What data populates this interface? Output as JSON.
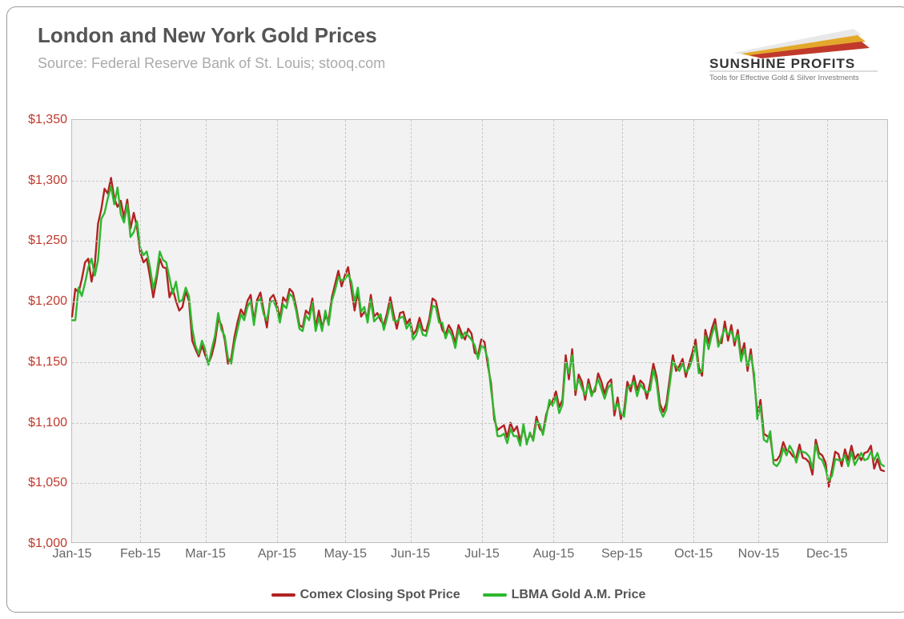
{
  "chart": {
    "title": "London and New York Gold Prices",
    "subtitle": "Source: Federal Reserve Bank of St. Louis; stooq.com",
    "type": "line",
    "background_color": "#f2f2f2",
    "container_bg": "#ffffff",
    "border_color": "#bfbfbf",
    "grid_color": "#c8c8c8",
    "grid_dash": "4,4",
    "xlim": [
      0,
      251
    ],
    "ylim": [
      1000,
      1350
    ],
    "ytick_step": 50,
    "yticks": [
      1000,
      1050,
      1100,
      1150,
      1200,
      1250,
      1300,
      1350
    ],
    "ytick_prefix": "$",
    "ytick_color": "#c0392b",
    "ytick_fontsize": 16,
    "xticks_pos": [
      0,
      21,
      41,
      63,
      84,
      104,
      126,
      148,
      169,
      191,
      211,
      232
    ],
    "xticks_labels": [
      "Jan-15",
      "Feb-15",
      "Mar-15",
      "Apr-15",
      "May-15",
      "Jun-15",
      "Jul-15",
      "Aug-15",
      "Sep-15",
      "Oct-15",
      "Nov-15",
      "Dec-15"
    ],
    "xtick_color": "#666666",
    "xtick_fontsize": 16,
    "title_fontsize": 26,
    "title_color": "#555555",
    "subtitle_fontsize": 18,
    "subtitle_color": "#aaaaaa",
    "line_width": 2.4,
    "series": [
      {
        "name": "Comex Closing Spot Price",
        "color": "#b22222",
        "data": [
          1187,
          1210,
          1207,
          1218,
          1232,
          1235,
          1216,
          1230,
          1264,
          1276,
          1293,
          1289,
          1302,
          1285,
          1278,
          1283,
          1269,
          1284,
          1260,
          1273,
          1261,
          1240,
          1232,
          1235,
          1220,
          1203,
          1218,
          1235,
          1228,
          1227,
          1203,
          1210,
          1200,
          1192,
          1195,
          1208,
          1200,
          1167,
          1160,
          1154,
          1163,
          1155,
          1148,
          1155,
          1166,
          1185,
          1180,
          1168,
          1148,
          1152,
          1170,
          1183,
          1193,
          1188,
          1200,
          1205,
          1183,
          1201,
          1207,
          1192,
          1178,
          1202,
          1205,
          1198,
          1185,
          1203,
          1199,
          1210,
          1207,
          1195,
          1180,
          1178,
          1192,
          1189,
          1202,
          1178,
          1192,
          1178,
          1187,
          1184,
          1203,
          1214,
          1225,
          1212,
          1221,
          1228,
          1210,
          1192,
          1208,
          1187,
          1191,
          1186,
          1205,
          1187,
          1190,
          1184,
          1180,
          1190,
          1203,
          1189,
          1177,
          1190,
          1191,
          1181,
          1185,
          1172,
          1176,
          1186,
          1176,
          1175,
          1185,
          1202,
          1200,
          1187,
          1176,
          1172,
          1180,
          1175,
          1165,
          1180,
          1173,
          1168,
          1177,
          1173,
          1157,
          1155,
          1168,
          1166,
          1147,
          1132,
          1102,
          1093,
          1095,
          1097,
          1087,
          1099,
          1092,
          1096,
          1084,
          1095,
          1083,
          1089,
          1086,
          1104,
          1094,
          1091,
          1106,
          1114,
          1117,
          1125,
          1112,
          1118,
          1155,
          1135,
          1160,
          1122,
          1139,
          1133,
          1118,
          1135,
          1124,
          1125,
          1140,
          1133,
          1123,
          1132,
          1135,
          1105,
          1120,
          1102,
          1109,
          1133,
          1125,
          1138,
          1126,
          1134,
          1131,
          1119,
          1132,
          1148,
          1137,
          1115,
          1108,
          1115,
          1135,
          1155,
          1142,
          1146,
          1152,
          1137,
          1148,
          1157,
          1168,
          1145,
          1138,
          1176,
          1165,
          1177,
          1185,
          1166,
          1165,
          1183,
          1167,
          1180,
          1163,
          1176,
          1155,
          1165,
          1142,
          1160,
          1136,
          1107,
          1118,
          1090,
          1088,
          1087,
          1068,
          1068,
          1072,
          1083,
          1076,
          1075,
          1071,
          1070,
          1081,
          1070,
          1069,
          1066,
          1056,
          1085,
          1074,
          1072,
          1066,
          1046,
          1060,
          1075,
          1073,
          1063,
          1077,
          1068,
          1080,
          1069,
          1073,
          1068,
          1074,
          1075,
          1080,
          1061,
          1069,
          1060,
          1059
        ]
      },
      {
        "name": "LBMA Gold A.M. Price",
        "color": "#2eb82e",
        "data": [
          1184,
          1184,
          1211,
          1204,
          1215,
          1228,
          1235,
          1221,
          1234,
          1268,
          1273,
          1285,
          1295,
          1280,
          1294,
          1272,
          1265,
          1280,
          1253,
          1257,
          1266,
          1244,
          1238,
          1241,
          1228,
          1210,
          1222,
          1241,
          1234,
          1232,
          1219,
          1206,
          1216,
          1199,
          1201,
          1211,
          1204,
          1177,
          1163,
          1156,
          1167,
          1160,
          1147,
          1160,
          1171,
          1190,
          1176,
          1171,
          1153,
          1148,
          1165,
          1177,
          1189,
          1184,
          1195,
          1200,
          1180,
          1199,
          1202,
          1189,
          1184,
          1199,
          1200,
          1194,
          1182,
          1197,
          1194,
          1206,
          1203,
          1192,
          1177,
          1175,
          1188,
          1184,
          1198,
          1175,
          1186,
          1175,
          1192,
          1180,
          1200,
          1209,
          1220,
          1217,
          1218,
          1222,
          1216,
          1199,
          1211,
          1191,
          1195,
          1182,
          1201,
          1183,
          1186,
          1189,
          1176,
          1186,
          1198,
          1184,
          1183,
          1186,
          1187,
          1177,
          1182,
          1168,
          1172,
          1181,
          1172,
          1171,
          1181,
          1196,
          1195,
          1182,
          1182,
          1169,
          1176,
          1171,
          1161,
          1176,
          1169,
          1174,
          1171,
          1168,
          1163,
          1152,
          1163,
          1161,
          1152,
          1127,
          1106,
          1088,
          1088,
          1090,
          1082,
          1094,
          1088,
          1088,
          1080,
          1098,
          1081,
          1091,
          1084,
          1100,
          1098,
          1089,
          1103,
          1118,
          1113,
          1121,
          1107,
          1114,
          1149,
          1140,
          1155,
          1126,
          1135,
          1128,
          1122,
          1131,
          1121,
          1128,
          1135,
          1127,
          1119,
          1128,
          1131,
          1110,
          1115,
          1107,
          1104,
          1128,
          1130,
          1133,
          1121,
          1131,
          1127,
          1124,
          1126,
          1143,
          1132,
          1110,
          1104,
          1110,
          1130,
          1150,
          1146,
          1142,
          1148,
          1141,
          1144,
          1152,
          1163,
          1140,
          1142,
          1171,
          1160,
          1172,
          1180,
          1162,
          1170,
          1177,
          1172,
          1175,
          1167,
          1172,
          1150,
          1160,
          1146,
          1155,
          1140,
          1102,
          1113,
          1085,
          1083,
          1092,
          1065,
          1063,
          1067,
          1078,
          1072,
          1080,
          1075,
          1066,
          1076,
          1075,
          1074,
          1071,
          1061,
          1081,
          1070,
          1068,
          1061,
          1051,
          1055,
          1069,
          1068,
          1068,
          1072,
          1063,
          1075,
          1064,
          1069,
          1074,
          1068,
          1069,
          1075,
          1068,
          1074,
          1065,
          1063
        ]
      }
    ]
  },
  "logo": {
    "brand_top": "SUNSHINE PROFITS",
    "tagline": "Tools for Effective Gold & Silver Investments",
    "brand_color_top": "#333333",
    "tagline_color": "#777777",
    "swoosh_colors": [
      "#c0392b",
      "#e3a82b",
      "#e8e8e8"
    ]
  }
}
